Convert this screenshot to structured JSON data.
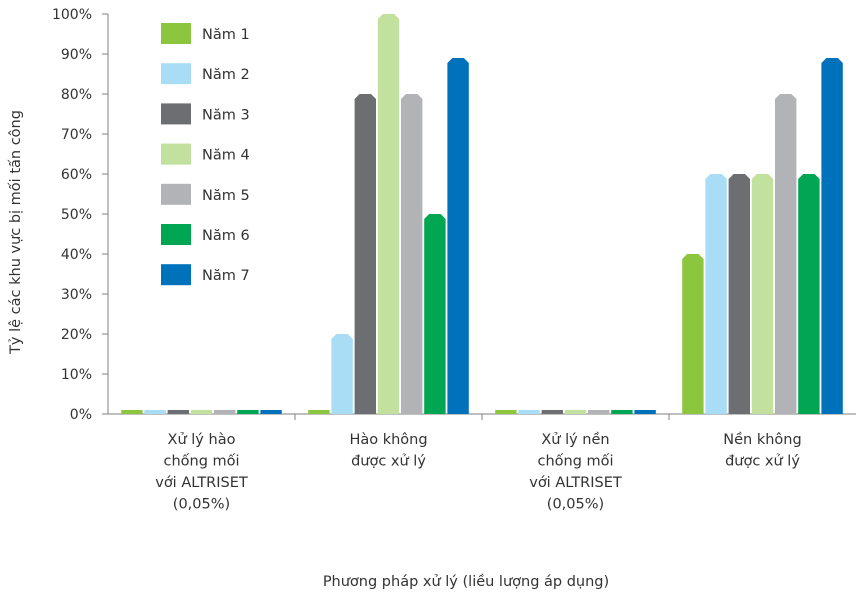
{
  "chart_data": {
    "type": "bar",
    "title": "",
    "xlabel": "Phương pháp xử lý (liều lượng áp dụng)",
    "ylabel": "Tỷ lệ các khu vực bị mối tấn công",
    "ylim": [
      0,
      100
    ],
    "y_ticks": [
      "0%",
      "10%",
      "20%",
      "30%",
      "40%",
      "50%",
      "60%",
      "70%",
      "80%",
      "90%",
      "100%"
    ],
    "categories": [
      [
        "Xử lý hào",
        "chống mối",
        "với ALTRISET",
        "(0,05%)"
      ],
      [
        "Hào không",
        "được xử lý"
      ],
      [
        "Xử lý nền",
        "chống mối",
        "với ALTRISET",
        "(0,05%)"
      ],
      [
        "Nền không",
        "được xử lý"
      ]
    ],
    "series": [
      {
        "name": "Năm 1",
        "color": "#8cc63f",
        "values": [
          0.8,
          0.8,
          0.8,
          40
        ]
      },
      {
        "name": "Năm 2",
        "color": "#a8ddf5",
        "values": [
          0.8,
          20,
          0.8,
          60
        ]
      },
      {
        "name": "Năm 3",
        "color": "#6d6e71",
        "values": [
          0.8,
          80,
          0.8,
          60
        ]
      },
      {
        "name": "Năm 4",
        "color": "#c2e09e",
        "values": [
          0.8,
          100,
          0.8,
          60
        ]
      },
      {
        "name": "Năm 5",
        "color": "#b1b3b6",
        "values": [
          0.8,
          80,
          0.8,
          80
        ]
      },
      {
        "name": "Năm 6",
        "color": "#00a651",
        "values": [
          0.8,
          50,
          0.8,
          60
        ]
      },
      {
        "name": "Năm 7",
        "color": "#0072bc",
        "values": [
          0.8,
          89,
          0.8,
          89
        ]
      }
    ],
    "grid": false,
    "legend_position": "top-left"
  }
}
